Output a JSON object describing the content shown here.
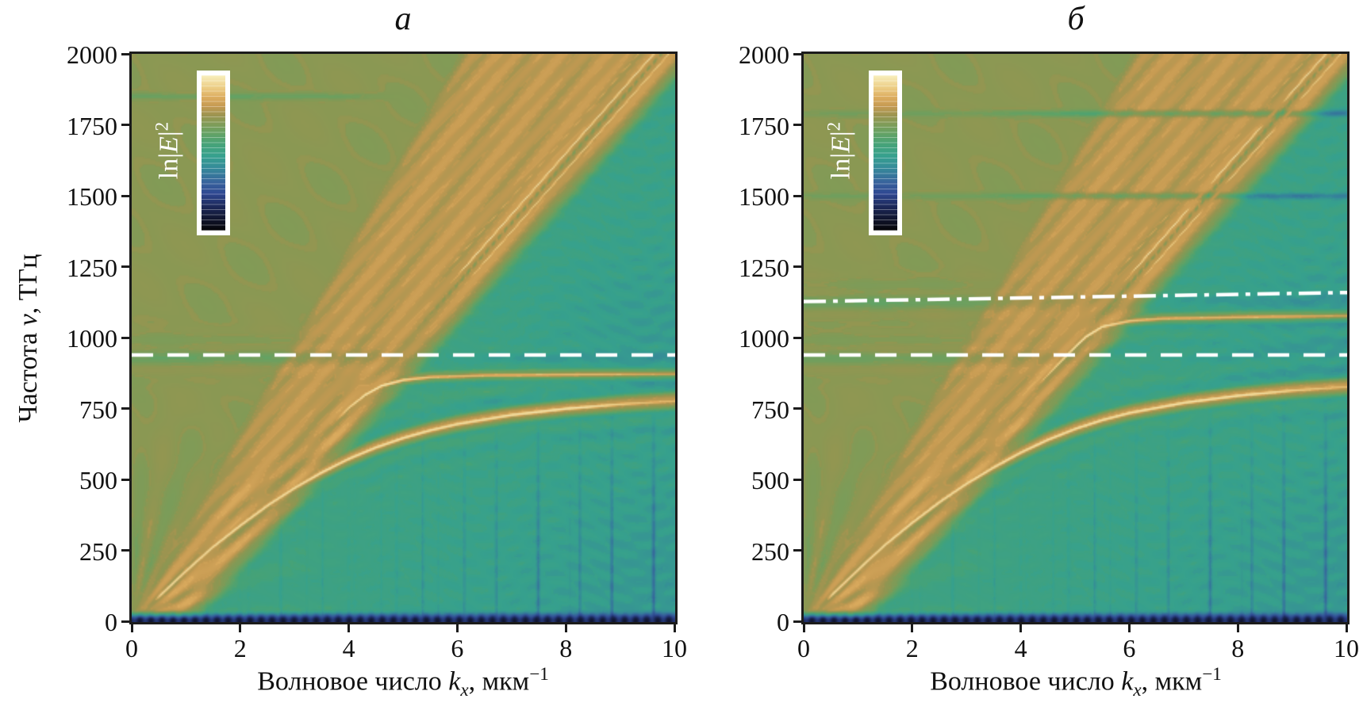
{
  "figure": {
    "background": "#ffffff",
    "frame_color": "#1c1c1c",
    "overlay_line_color": "#ffffff",
    "text_color": "#111111"
  },
  "labels": {
    "y_axis": {
      "text1": "Частота ",
      "var": "ν",
      "text2": ", ТГц"
    },
    "x_axis": {
      "text1": "Волновое число ",
      "var": "k",
      "sub": "x",
      "text2": ", мкм",
      "sup": "−1"
    },
    "colorbar": {
      "text1": "ln|",
      "var": "E",
      "text2": "|",
      "sup": "2"
    }
  },
  "chart_data": {
    "type": "heatmap",
    "description": "Two contour maps of ln|E|^2 versus in-plane wavenumber kx (0–10 um^-1) and frequency (0–2000 THz). Bright light-line diagonals, lower and upper polariton branches saturating at horizontal asymptotes, white dashed/dash-dot resonance frequency lines.",
    "x_axis": {
      "min": 0,
      "max": 10,
      "ticks": [
        0,
        2,
        4,
        6,
        8,
        10
      ]
    },
    "y_axis": {
      "min": 0,
      "max": 2000,
      "ticks": [
        0,
        250,
        500,
        750,
        1000,
        1250,
        1500,
        1750,
        2000
      ]
    },
    "colormap": {
      "name": "gist-earth-like",
      "stops": [
        [
          0.0,
          "#050507"
        ],
        [
          0.07,
          "#10142b"
        ],
        [
          0.16,
          "#1d2a5c"
        ],
        [
          0.24,
          "#2f4892"
        ],
        [
          0.31,
          "#38639c"
        ],
        [
          0.4,
          "#35899a"
        ],
        [
          0.48,
          "#37a18e"
        ],
        [
          0.56,
          "#47a377"
        ],
        [
          0.63,
          "#66a263"
        ],
        [
          0.7,
          "#879a55"
        ],
        [
          0.74,
          "#9a9450"
        ],
        [
          0.8,
          "#c59a52"
        ],
        [
          0.86,
          "#ddad60"
        ],
        [
          0.92,
          "#eccd85"
        ],
        [
          1.0,
          "#f8efbd"
        ]
      ]
    },
    "panels": [
      {
        "title": "а",
        "colorbar_label": "ln|E|2",
        "features": {
          "cone_slope": 325,
          "diag_slope": 216,
          "bright_diags": [
            {
              "offset": -75,
              "amp": 0.97
            },
            {
              "offset": -135,
              "amp": 0.93
            }
          ],
          "faint_diag": {
            "offset": -15,
            "amp": 0.84
          },
          "seam": {
            "offset": -105
          },
          "lower_polariton": [
            [
              0,
              0
            ],
            [
              0.5,
              90
            ],
            [
              1,
              180
            ],
            [
              1.5,
              265
            ],
            [
              2,
              340
            ],
            [
              2.5,
              410
            ],
            [
              3,
              472
            ],
            [
              3.5,
              527
            ],
            [
              4,
              575
            ],
            [
              4.5,
              615
            ],
            [
              5,
              648
            ],
            [
              5.5,
              675
            ],
            [
              6,
              697
            ],
            [
              7,
              729
            ],
            [
              8,
              751
            ],
            [
              9,
              767
            ],
            [
              10,
              778
            ]
          ],
          "upper_branch": [
            [
              2.8,
              520
            ],
            [
              3.2,
              600
            ],
            [
              3.6,
              680
            ],
            [
              4,
              755
            ],
            [
              4.3,
              800
            ],
            [
              4.6,
              832
            ],
            [
              5,
              852
            ],
            [
              5.5,
              862
            ],
            [
              6.5,
              868
            ],
            [
              8,
              871
            ],
            [
              10,
              873
            ]
          ],
          "upper_branch_fade_in": [
            2.8,
            4.0
          ],
          "knee": 4.5,
          "notches": [
            {
              "f": 940,
              "amp": 0.06
            }
          ],
          "faint_horizontals": [
            {
              "f": 1850,
              "k_max": 4.5,
              "amp": 0.07
            }
          ],
          "diag_gaps": []
        },
        "overlays": [
          {
            "style": "dashed",
            "f0": 940,
            "f1": 940
          }
        ]
      },
      {
        "title": "б",
        "colorbar_label": "ln|E|2",
        "features": {
          "cone_slope": 325,
          "diag_slope": 216,
          "bright_diags": [
            {
              "offset": -75,
              "amp": 0.97
            },
            {
              "offset": -135,
              "amp": 0.93
            }
          ],
          "faint_diag": {
            "offset": -15,
            "amp": 0.84
          },
          "seam": {
            "offset": -105
          },
          "lower_polariton": [
            [
              0,
              0
            ],
            [
              0.5,
              92
            ],
            [
              1,
              184
            ],
            [
              1.5,
              272
            ],
            [
              2,
              350
            ],
            [
              2.5,
              422
            ],
            [
              3,
              487
            ],
            [
              3.5,
              545
            ],
            [
              4,
              597
            ],
            [
              4.5,
              642
            ],
            [
              5,
              680
            ],
            [
              5.5,
              711
            ],
            [
              6,
              736
            ],
            [
              7,
              772
            ],
            [
              8,
              797
            ],
            [
              9,
              815
            ],
            [
              10,
              828
            ]
          ],
          "upper_branch": [
            [
              3.3,
              610
            ],
            [
              3.7,
              700
            ],
            [
              4.1,
              790
            ],
            [
              4.5,
              872
            ],
            [
              4.9,
              950
            ],
            [
              5.2,
              1005
            ],
            [
              5.5,
              1040
            ],
            [
              6,
              1060
            ],
            [
              6.6,
              1068
            ],
            [
              8,
              1073
            ],
            [
              10,
              1078
            ]
          ],
          "upper_branch_fade_in": [
            3.3,
            4.6
          ],
          "knee": 5.2,
          "notches": [
            {
              "f": 940,
              "amp": 0.04
            },
            {
              "f": 1135,
              "amp": 0.06
            }
          ],
          "faint_horizontals": [
            {
              "f": 1500,
              "amp": 0.13
            },
            {
              "f": 1790,
              "amp": 0.13
            }
          ],
          "diag_gaps": [
            1500,
            1790
          ]
        },
        "overlays": [
          {
            "style": "dashed",
            "f0": 940,
            "f1": 940
          },
          {
            "style": "dashdot",
            "f0": 1128,
            "f1": 1160
          }
        ]
      }
    ]
  }
}
